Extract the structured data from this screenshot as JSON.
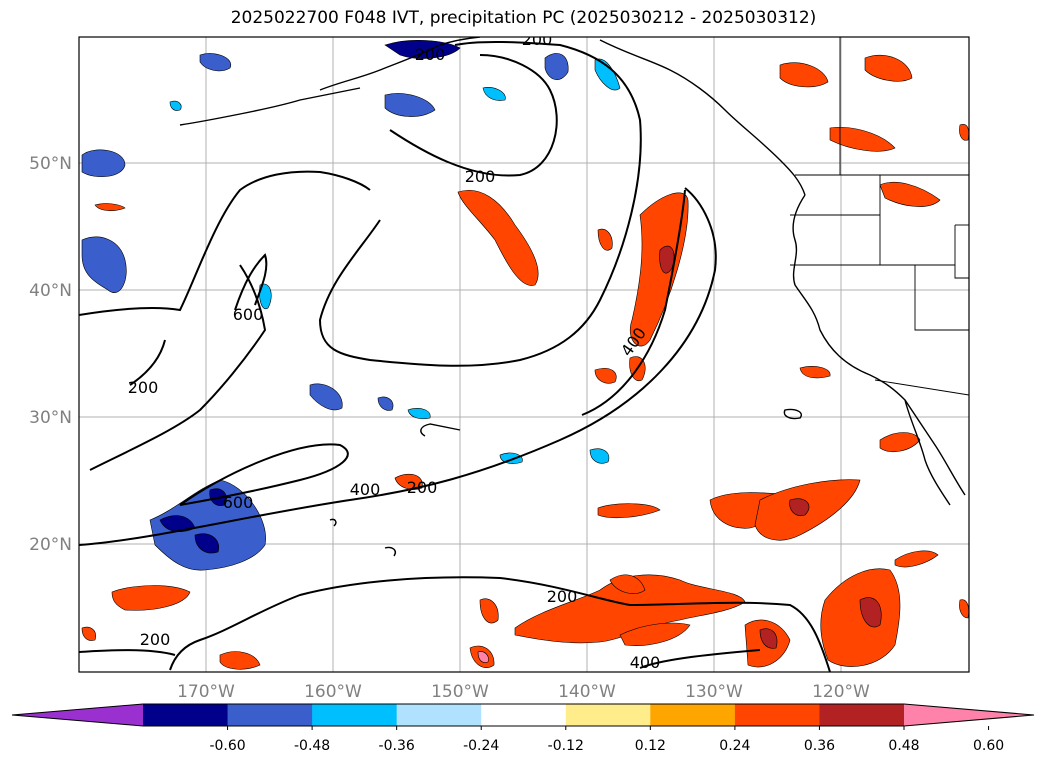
{
  "title": "2025022700 F048 IVT, precipitation PC (2025030212 - 2025030312)",
  "map": {
    "lat_ticks": [
      "50°N",
      "40°N",
      "30°N",
      "20°N"
    ],
    "lon_ticks": [
      "170°W",
      "160°W",
      "150°W",
      "140°W",
      "130°W",
      "120°W"
    ],
    "tick_color": "#808080",
    "grid": true,
    "ivt_contour_labels": [
      "200",
      "200",
      "200",
      "200",
      "200",
      "200",
      "200",
      "400",
      "400",
      "400",
      "600",
      "600"
    ]
  },
  "colorbar": {
    "tick_labels": [
      "-0.60",
      "-0.48",
      "-0.36",
      "-0.24",
      "-0.12",
      "0.12",
      "0.24",
      "0.36",
      "0.48",
      "0.60"
    ],
    "colors": [
      "#9b30d0",
      "#00008b",
      "#3a5fcd",
      "#00bfff",
      "#b0e2ff",
      "#ffffff",
      "#ffec8b",
      "#ffa500",
      "#ff4500",
      "#b22222",
      "#ff82ab"
    ],
    "extend": "both"
  },
  "legend_colors": {
    "land_outline": "#000000",
    "ivt_contour": "#000000"
  }
}
